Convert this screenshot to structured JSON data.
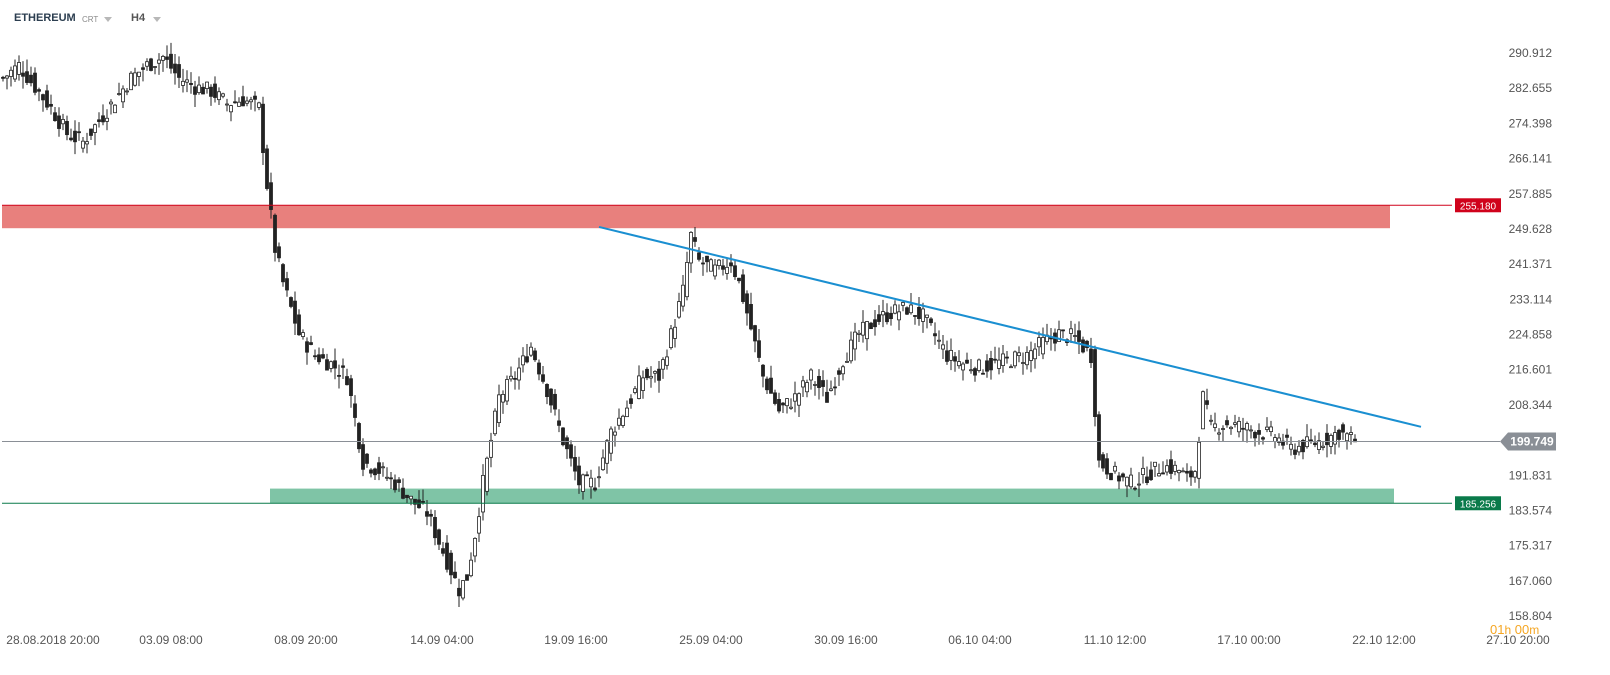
{
  "header": {
    "symbol": "ETHEREUM",
    "type": "CRT",
    "timeframe": "H4"
  },
  "countdown": {
    "hours": "01",
    "hours_unit": "h",
    "minutes": "00",
    "minutes_unit": "m"
  },
  "colors": {
    "resistance_zone": "#e8807d",
    "support_zone": "#7fc4a6",
    "trendline": "#1a8fd1",
    "resistance_label_bg": "#d0021b",
    "support_label_bg": "#0a7a4a",
    "price_label_bg": "#8a8f96",
    "candle": "#222222"
  },
  "chart_data": {
    "type": "candlestick",
    "y_ticks": [
      "290.912",
      "282.655",
      "274.398",
      "266.141",
      "257.885",
      "249.628",
      "241.371",
      "233.114",
      "224.858",
      "216.601",
      "208.344",
      "199.749",
      "191.831",
      "183.574",
      "175.317",
      "167.060",
      "158.804"
    ],
    "y_range": [
      158.804,
      296
    ],
    "x_ticks": [
      "28.08.2018  20:00",
      "03.09  08:00",
      "08.09  20:00",
      "14.09  04:00",
      "19.09  16:00",
      "25.09  04:00",
      "30.09  16:00",
      "06.10  04:00",
      "11.10  12:00",
      "17.10  00:00",
      "22.10  12:00",
      "27.10  20:00"
    ],
    "resistance": {
      "label": "255.180",
      "price": 255.18,
      "zone": [
        249.8,
        255.18
      ]
    },
    "support": {
      "label": "185.256",
      "price": 185.256,
      "zone": [
        185.256,
        188.7
      ]
    },
    "current_price": {
      "label": "199.749",
      "price": 199.749
    },
    "trendline": {
      "from_price": 250.1,
      "to_price": 203.2
    },
    "close_anchors": [
      [
        0,
        285
      ],
      [
        4,
        288
      ],
      [
        8,
        283
      ],
      [
        12,
        278
      ],
      [
        16,
        272
      ],
      [
        20,
        270
      ],
      [
        24,
        275
      ],
      [
        28,
        280
      ],
      [
        32,
        285
      ],
      [
        36,
        288
      ],
      [
        40,
        290
      ],
      [
        44,
        285
      ],
      [
        48,
        283
      ],
      [
        52,
        282
      ],
      [
        56,
        279
      ],
      [
        60,
        280
      ],
      [
        64,
        278
      ],
      [
        66,
        260
      ],
      [
        68,
        245
      ],
      [
        70,
        237
      ],
      [
        74,
        225
      ],
      [
        78,
        220
      ],
      [
        82,
        218
      ],
      [
        86,
        215
      ],
      [
        90,
        195
      ],
      [
        94,
        193
      ],
      [
        98,
        190
      ],
      [
        102,
        186
      ],
      [
        106,
        183
      ],
      [
        110,
        174
      ],
      [
        114,
        165
      ],
      [
        116,
        168
      ],
      [
        118,
        178
      ],
      [
        120,
        190
      ],
      [
        124,
        210
      ],
      [
        128,
        215
      ],
      [
        132,
        222
      ],
      [
        136,
        212
      ],
      [
        140,
        200
      ],
      [
        144,
        190
      ],
      [
        148,
        190
      ],
      [
        152,
        202
      ],
      [
        156,
        208
      ],
      [
        160,
        215
      ],
      [
        164,
        215
      ],
      [
        168,
        228
      ],
      [
        170,
        235
      ],
      [
        172,
        248
      ],
      [
        174,
        242
      ],
      [
        178,
        240
      ],
      [
        182,
        242
      ],
      [
        184,
        237
      ],
      [
        186,
        230
      ],
      [
        190,
        215
      ],
      [
        194,
        207
      ],
      [
        198,
        210
      ],
      [
        202,
        215
      ],
      [
        206,
        210
      ],
      [
        210,
        219
      ],
      [
        214,
        225
      ],
      [
        218,
        228
      ],
      [
        222,
        230
      ],
      [
        226,
        231
      ],
      [
        230,
        229
      ],
      [
        234,
        223
      ],
      [
        236,
        220
      ],
      [
        240,
        218
      ],
      [
        244,
        217
      ],
      [
        248,
        218
      ],
      [
        252,
        219
      ],
      [
        256,
        220
      ],
      [
        260,
        223
      ],
      [
        264,
        225
      ],
      [
        268,
        224
      ],
      [
        272,
        220
      ],
      [
        274,
        195
      ],
      [
        278,
        192
      ],
      [
        282,
        190
      ],
      [
        286,
        192
      ],
      [
        290,
        194
      ],
      [
        294,
        193
      ],
      [
        296,
        191
      ],
      [
        298,
        193
      ],
      [
        300,
        210
      ],
      [
        302,
        203
      ],
      [
        306,
        204
      ],
      [
        310,
        203
      ],
      [
        314,
        202
      ],
      [
        318,
        201
      ],
      [
        322,
        198
      ],
      [
        326,
        199
      ],
      [
        330,
        200
      ],
      [
        334,
        202
      ],
      [
        338,
        200
      ]
    ]
  }
}
